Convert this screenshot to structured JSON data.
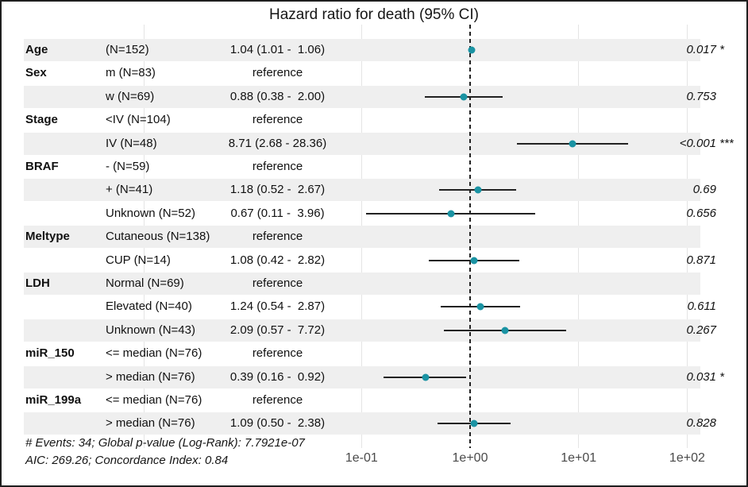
{
  "title": "Hazard ratio for death (95% CI)",
  "colors": {
    "marker": "#1a93a3",
    "band": "#efefef",
    "errorbar": "#222222",
    "refline": "#222222",
    "gridline": "#e4e4e4",
    "axis_text": "#4a4a4a",
    "text": "#111111"
  },
  "chart_data": {
    "type": "forest",
    "title": "Hazard ratio for death (95% CI)",
    "x_scale": "log10",
    "x_ticks": [
      {
        "value": 0.1,
        "label": "1e-01"
      },
      {
        "value": 1,
        "label": "1e+00"
      },
      {
        "value": 10,
        "label": "1e+01"
      },
      {
        "value": 100,
        "label": "1e+02"
      }
    ],
    "gridline_values": [
      0.001,
      0.1,
      10,
      100
    ],
    "reference_line": 1,
    "xlim": [
      0.0001,
      100
    ],
    "legend": "none",
    "rows": [
      {
        "variable": "Age",
        "level": "(N=152)",
        "estimate_label": "1.04 (1.01 -  1.06)",
        "hr": 1.04,
        "ci_low": 1.01,
        "ci_high": 1.06,
        "p_label": "0.017",
        "significance": "*",
        "shaded": true
      },
      {
        "variable": "Sex",
        "level": "m (N=83)",
        "estimate_label": "reference",
        "hr": null,
        "ci_low": null,
        "ci_high": null,
        "p_label": "",
        "significance": "",
        "shaded": false
      },
      {
        "variable": "",
        "level": "w (N=69)",
        "estimate_label": "0.88 (0.38 -  2.00)",
        "hr": 0.88,
        "ci_low": 0.38,
        "ci_high": 2.0,
        "p_label": "0.753",
        "significance": "",
        "shaded": true
      },
      {
        "variable": "Stage",
        "level": "<IV (N=104)",
        "estimate_label": "reference",
        "hr": null,
        "ci_low": null,
        "ci_high": null,
        "p_label": "",
        "significance": "",
        "shaded": false
      },
      {
        "variable": "",
        "level": "IV (N=48)",
        "estimate_label": "8.71 (2.68 - 28.36)",
        "hr": 8.71,
        "ci_low": 2.68,
        "ci_high": 28.36,
        "p_label": "<0.001",
        "significance": "***",
        "shaded": true
      },
      {
        "variable": "BRAF",
        "level": "- (N=59)",
        "estimate_label": "reference",
        "hr": null,
        "ci_low": null,
        "ci_high": null,
        "p_label": "",
        "significance": "",
        "shaded": false
      },
      {
        "variable": "",
        "level": "+ (N=41)",
        "estimate_label": "1.18 (0.52 -  2.67)",
        "hr": 1.18,
        "ci_low": 0.52,
        "ci_high": 2.67,
        "p_label": "0.69",
        "significance": "",
        "shaded": true
      },
      {
        "variable": "",
        "level": "Unknown (N=52)",
        "estimate_label": "0.67 (0.11 -  3.96)",
        "hr": 0.67,
        "ci_low": 0.11,
        "ci_high": 3.96,
        "p_label": "0.656",
        "significance": "",
        "shaded": false
      },
      {
        "variable": "Meltype",
        "level": "Cutaneous (N=138)",
        "estimate_label": "reference",
        "hr": null,
        "ci_low": null,
        "ci_high": null,
        "p_label": "",
        "significance": "",
        "shaded": true
      },
      {
        "variable": "",
        "level": "CUP (N=14)",
        "estimate_label": "1.08 (0.42 -  2.82)",
        "hr": 1.08,
        "ci_low": 0.42,
        "ci_high": 2.82,
        "p_label": "0.871",
        "significance": "",
        "shaded": false
      },
      {
        "variable": "LDH",
        "level": "Normal (N=69)",
        "estimate_label": "reference",
        "hr": null,
        "ci_low": null,
        "ci_high": null,
        "p_label": "",
        "significance": "",
        "shaded": true
      },
      {
        "variable": "",
        "level": "Elevated (N=40)",
        "estimate_label": "1.24 (0.54 -  2.87)",
        "hr": 1.24,
        "ci_low": 0.54,
        "ci_high": 2.87,
        "p_label": "0.611",
        "significance": "",
        "shaded": false
      },
      {
        "variable": "",
        "level": "Unknown (N=43)",
        "estimate_label": "2.09 (0.57 -  7.72)",
        "hr": 2.09,
        "ci_low": 0.57,
        "ci_high": 7.72,
        "p_label": "0.267",
        "significance": "",
        "shaded": true
      },
      {
        "variable": "miR_150",
        "level": "<= median (N=76)",
        "estimate_label": "reference",
        "hr": null,
        "ci_low": null,
        "ci_high": null,
        "p_label": "",
        "significance": "",
        "shaded": false
      },
      {
        "variable": "",
        "level": "> median (N=76)",
        "estimate_label": "0.39 (0.16 -  0.92)",
        "hr": 0.39,
        "ci_low": 0.16,
        "ci_high": 0.92,
        "p_label": "0.031",
        "significance": "*",
        "shaded": true
      },
      {
        "variable": "miR_199a",
        "level": "<= median (N=76)",
        "estimate_label": "reference",
        "hr": null,
        "ci_low": null,
        "ci_high": null,
        "p_label": "",
        "significance": "",
        "shaded": false
      },
      {
        "variable": "",
        "level": "> median (N=76)",
        "estimate_label": "1.09 (0.50 -  2.38)",
        "hr": 1.09,
        "ci_low": 0.5,
        "ci_high": 2.38,
        "p_label": "0.828",
        "significance": "",
        "shaded": true
      }
    ],
    "footer": [
      "# Events: 34; Global p-value (Log-Rank): 7.7921e-07",
      "AIC: 269.26; Concordance Index: 0.84"
    ]
  }
}
